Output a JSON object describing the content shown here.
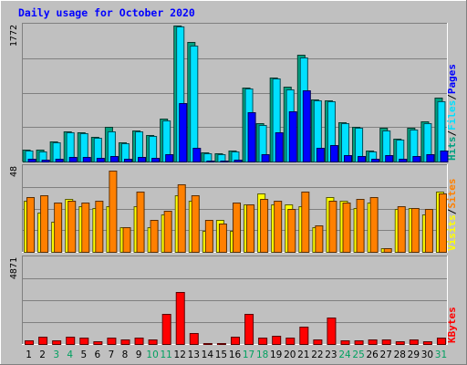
{
  "chart_data": {
    "type": "bar",
    "title": "Daily usage for October 2020",
    "x": [
      "1",
      "2",
      "3",
      "4",
      "5",
      "6",
      "7",
      "8",
      "9",
      "10",
      "11",
      "12",
      "13",
      "14",
      "15",
      "16",
      "17",
      "18",
      "19",
      "20",
      "21",
      "22",
      "23",
      "24",
      "25",
      "26",
      "27",
      "28",
      "29",
      "30",
      "31"
    ],
    "weekend_days": [
      "3",
      "4",
      "10",
      "11",
      "17",
      "18",
      "24",
      "25",
      "31"
    ],
    "panels": [
      {
        "name": "pages-files-hits",
        "max_label": "1772",
        "ymax": 1772,
        "series_labels": [
          "Pages",
          "/",
          "Files",
          "/",
          "Hits"
        ],
        "series": [
          {
            "name": "Hits",
            "color": "#00a080",
            "values": [
              160,
              150,
              265,
              390,
              385,
              325,
              450,
              245,
              410,
              345,
              560,
              1772,
              1560,
              115,
              110,
              145,
              960,
              495,
              1100,
              970,
              1390,
              810,
              800,
              515,
              455,
              145,
              435,
              300,
              445,
              520,
              830
            ]
          },
          {
            "name": "Files",
            "color": "#00e0ff",
            "values": [
              140,
              135,
              250,
              380,
              370,
              315,
              390,
              240,
              390,
              335,
              540,
              1760,
              1510,
              105,
              95,
              130,
              950,
              480,
              1080,
              940,
              1360,
              795,
              790,
              500,
              440,
              125,
              410,
              285,
              420,
              500,
              780
            ]
          },
          {
            "name": "Pages",
            "color": "#0000ff",
            "values": [
              30,
              25,
              40,
              60,
              55,
              45,
              70,
              35,
              60,
              50,
              90,
              760,
              180,
              15,
              12,
              25,
              640,
              95,
              380,
              650,
              930,
              180,
              210,
              80,
              70,
              30,
              85,
              40,
              75,
              90,
              140
            ]
          }
        ]
      },
      {
        "name": "sites-visits",
        "max_label": "48",
        "ymax": 48,
        "series_labels": [
          "Sites",
          "/",
          "Visits"
        ],
        "series": [
          {
            "name": "Visits",
            "color": "#ffff00",
            "values": [
              29,
              22,
              17,
              30,
              26,
              25,
              26,
              14,
              26,
              14,
              21,
              32,
              29,
              12,
              18,
              12,
              27,
              33,
              27,
              27,
              26,
              14,
              31,
              29,
              25,
              28,
              2,
              24,
              25,
              21,
              34
            ]
          },
          {
            "name": "Sites",
            "color": "#ff8000",
            "values": [
              31,
              32,
              28,
              29,
              28,
              29,
              46,
              14,
              34,
              18,
              23,
              38,
              32,
              18,
              16,
              28,
              27,
              30,
              29,
              24,
              34,
              15,
              29,
              28,
              30,
              31,
              2,
              26,
              25,
              24,
              33
            ]
          }
        ]
      },
      {
        "name": "kbytes",
        "max_label": "4871",
        "ymax": 4871,
        "series_labels": [
          "KBytes"
        ],
        "series": [
          {
            "name": "KBytes",
            "color": "#ff0000",
            "values": [
              230,
              420,
              200,
              430,
              340,
              180,
              340,
              250,
              340,
              260,
              1730,
              2970,
              630,
              65,
              45,
              410,
              1710,
              370,
              450,
              370,
              960,
              280,
              1510,
              200,
              210,
              240,
              250,
              170,
              240,
              160,
              340
            ]
          }
        ]
      }
    ]
  }
}
